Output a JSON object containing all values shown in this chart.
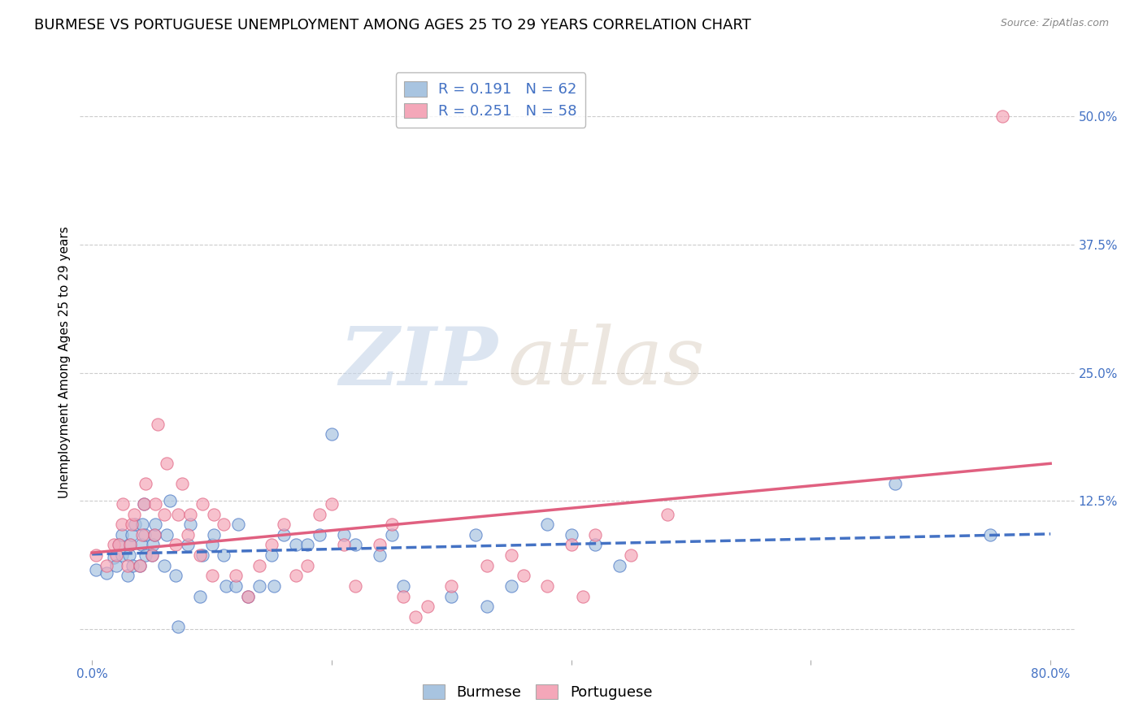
{
  "title": "BURMESE VS PORTUGUESE UNEMPLOYMENT AMONG AGES 25 TO 29 YEARS CORRELATION CHART",
  "source": "Source: ZipAtlas.com",
  "xlabel": "",
  "ylabel": "Unemployment Among Ages 25 to 29 years",
  "xlim": [
    -0.01,
    0.82
  ],
  "ylim": [
    -0.03,
    0.55
  ],
  "xticks": [
    0.0,
    0.2,
    0.4,
    0.6,
    0.8
  ],
  "xticklabels": [
    "0.0%",
    "",
    "",
    "",
    "80.0%"
  ],
  "yticks_right": [
    0.0,
    0.125,
    0.25,
    0.375,
    0.5
  ],
  "ytick_right_labels": [
    "",
    "12.5%",
    "25.0%",
    "37.5%",
    "50.0%"
  ],
  "burmese_color": "#a8c4e0",
  "portuguese_color": "#f4a7b9",
  "burmese_line_color": "#4472c4",
  "portuguese_line_color": "#e06080",
  "burmese_R": 0.191,
  "burmese_N": 62,
  "portuguese_R": 0.251,
  "portuguese_N": 58,
  "legend_label_burmese": "Burmese",
  "legend_label_portuguese": "Portuguese",
  "watermark_zip": "ZIP",
  "watermark_atlas": "atlas",
  "background_color": "#ffffff",
  "grid_color": "#cccccc",
  "title_fontsize": 13,
  "axis_label_fontsize": 11,
  "tick_fontsize": 11,
  "burmese_x": [
    0.003,
    0.012,
    0.018,
    0.02,
    0.022,
    0.025,
    0.025,
    0.03,
    0.031,
    0.032,
    0.033,
    0.034,
    0.036,
    0.04,
    0.041,
    0.042,
    0.043,
    0.044,
    0.045,
    0.05,
    0.051,
    0.052,
    0.053,
    0.06,
    0.062,
    0.065,
    0.07,
    0.072,
    0.08,
    0.082,
    0.09,
    0.092,
    0.1,
    0.102,
    0.11,
    0.112,
    0.12,
    0.122,
    0.13,
    0.14,
    0.15,
    0.152,
    0.16,
    0.17,
    0.18,
    0.19,
    0.2,
    0.21,
    0.22,
    0.24,
    0.25,
    0.26,
    0.3,
    0.32,
    0.33,
    0.35,
    0.38,
    0.4,
    0.42,
    0.44,
    0.67,
    0.75
  ],
  "burmese_y": [
    0.058,
    0.055,
    0.07,
    0.062,
    0.082,
    0.092,
    0.072,
    0.052,
    0.072,
    0.082,
    0.092,
    0.062,
    0.102,
    0.062,
    0.082,
    0.102,
    0.122,
    0.092,
    0.072,
    0.072,
    0.082,
    0.092,
    0.102,
    0.062,
    0.092,
    0.125,
    0.052,
    0.002,
    0.082,
    0.102,
    0.032,
    0.072,
    0.082,
    0.092,
    0.072,
    0.042,
    0.042,
    0.102,
    0.032,
    0.042,
    0.072,
    0.042,
    0.092,
    0.082,
    0.082,
    0.092,
    0.19,
    0.092,
    0.082,
    0.072,
    0.092,
    0.042,
    0.032,
    0.092,
    0.022,
    0.042,
    0.102,
    0.092,
    0.082,
    0.062,
    0.142,
    0.092
  ],
  "portuguese_x": [
    0.003,
    0.012,
    0.018,
    0.02,
    0.022,
    0.025,
    0.026,
    0.03,
    0.032,
    0.033,
    0.035,
    0.04,
    0.042,
    0.043,
    0.045,
    0.05,
    0.052,
    0.053,
    0.055,
    0.06,
    0.062,
    0.07,
    0.072,
    0.075,
    0.08,
    0.082,
    0.09,
    0.092,
    0.1,
    0.102,
    0.11,
    0.12,
    0.13,
    0.14,
    0.15,
    0.16,
    0.17,
    0.18,
    0.19,
    0.2,
    0.21,
    0.22,
    0.24,
    0.25,
    0.26,
    0.27,
    0.28,
    0.3,
    0.33,
    0.35,
    0.36,
    0.38,
    0.4,
    0.41,
    0.42,
    0.45,
    0.48,
    0.76
  ],
  "portuguese_y": [
    0.072,
    0.062,
    0.082,
    0.072,
    0.082,
    0.102,
    0.122,
    0.062,
    0.082,
    0.102,
    0.112,
    0.062,
    0.092,
    0.122,
    0.142,
    0.072,
    0.092,
    0.122,
    0.2,
    0.112,
    0.162,
    0.082,
    0.112,
    0.142,
    0.092,
    0.112,
    0.072,
    0.122,
    0.052,
    0.112,
    0.102,
    0.052,
    0.032,
    0.062,
    0.082,
    0.102,
    0.052,
    0.062,
    0.112,
    0.122,
    0.082,
    0.042,
    0.082,
    0.102,
    0.032,
    0.012,
    0.022,
    0.042,
    0.062,
    0.072,
    0.052,
    0.042,
    0.082,
    0.032,
    0.092,
    0.072,
    0.112,
    0.5
  ]
}
